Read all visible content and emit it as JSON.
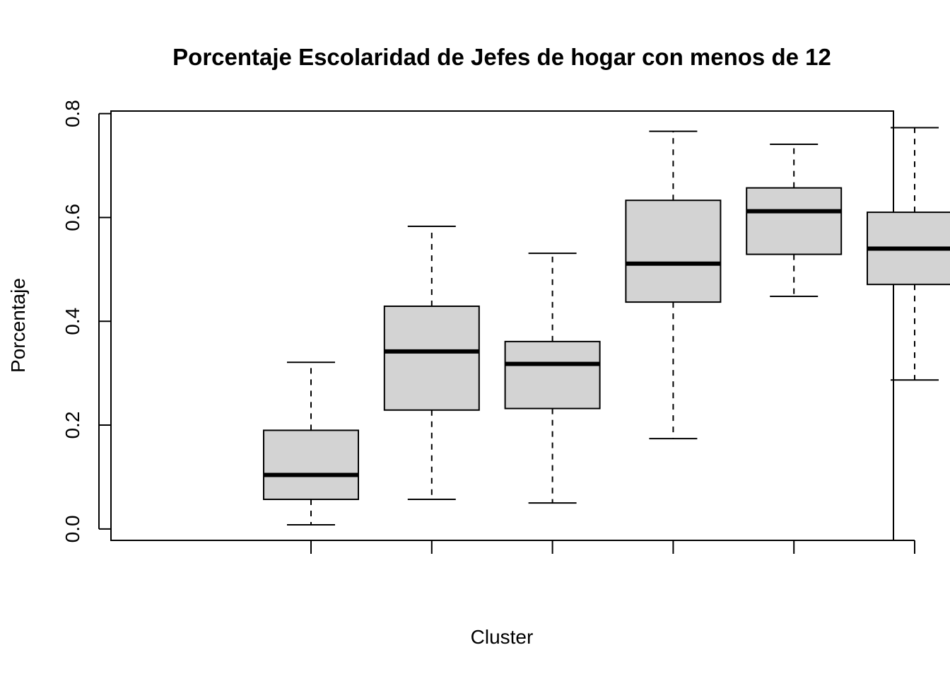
{
  "chart_data": {
    "type": "boxplot",
    "title": "Porcentaje Escolaridad de Jefes de hogar con menos de 12",
    "xlabel": "Cluster",
    "ylabel": "Porcentaje",
    "ylim": [
      -0.022,
      0.805
    ],
    "yticks": [
      "0.0",
      "0.2",
      "0.4",
      "0.6",
      "0.8"
    ],
    "ytick_values": [
      0.0,
      0.2,
      0.4,
      0.6,
      0.8
    ],
    "xtick_labels_visible": false,
    "box_fill": "#d3d3d3",
    "boxes": [
      {
        "min": 0.008,
        "q1": 0.057,
        "median": 0.104,
        "q3": 0.19,
        "max": 0.321
      },
      {
        "min": 0.057,
        "q1": 0.229,
        "median": 0.342,
        "q3": 0.429,
        "max": 0.583
      },
      {
        "min": 0.05,
        "q1": 0.232,
        "median": 0.318,
        "q3": 0.361,
        "max": 0.531
      },
      {
        "min": 0.174,
        "q1": 0.437,
        "median": 0.511,
        "q3": 0.633,
        "max": 0.766
      },
      {
        "min": 0.448,
        "q1": 0.529,
        "median": 0.612,
        "q3": 0.657,
        "max": 0.741
      },
      {
        "min": 0.287,
        "q1": 0.471,
        "median": 0.54,
        "q3": 0.61,
        "max": 0.773
      }
    ]
  }
}
